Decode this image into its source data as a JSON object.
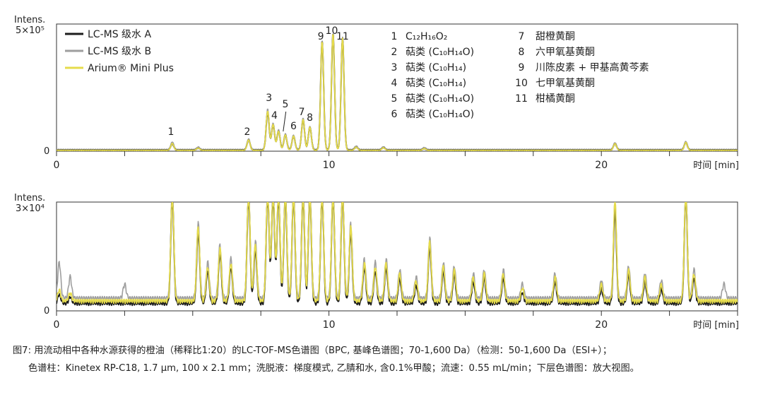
{
  "colors": {
    "series_a": "#1c1c1c",
    "series_b": "#9e9e9e",
    "series_c": "#e6dc4c",
    "axis": "#333333"
  },
  "caption": {
    "line1": "图7: 用流动相中各种水源获得的橙油（稀释比1:20）的LC-TOF-MS色谱图（BPC, 基峰色谱图；70-1,600 Da）（检测：50-1,600 Da（ESI+）；",
    "line2": "色谱柱：Kinetex RP-C18, 1.7 µm, 100 x 2.1 mm；洗脱液：梯度模式, 乙腈和水, 含0.1%甲酸；流速：0.55 mL/min；下层色谱图：放大视图。"
  },
  "chart_data": [
    {
      "type": "line",
      "panel": "top",
      "y_label_line1": "Intens.",
      "y_top_label": "5×10⁵",
      "y_zero_label": "0",
      "xlabel": "时间 [min]",
      "xlim": [
        0,
        25
      ],
      "ylim": [
        0,
        500000
      ],
      "x_tick_labels": [
        "0",
        "10",
        "20"
      ],
      "x_label_ticks": [
        0,
        10,
        20
      ],
      "x_minor_ticks": [
        0,
        2.5,
        5,
        7.5,
        10,
        12.5,
        15,
        17.5,
        20,
        22.5,
        25
      ],
      "legend": {
        "placement": "top-left",
        "entries": [
          "LC-MS 级水 A",
          "LC-MS 级水 B",
          "Arium® Mini Plus"
        ]
      },
      "peak_labels": [
        {
          "label": "1",
          "x": 4.2
        },
        {
          "label": "2",
          "x": 7.0
        },
        {
          "label": "3",
          "x": 7.8
        },
        {
          "label": "4",
          "x": 8.0
        },
        {
          "label": "5",
          "x": 8.4
        },
        {
          "label": "6",
          "x": 8.7
        },
        {
          "label": "7",
          "x": 9.0
        },
        {
          "label": "8",
          "x": 9.3
        },
        {
          "label": "9",
          "x": 9.7
        },
        {
          "label": "10",
          "x": 10.1
        },
        {
          "label": "11",
          "x": 10.5
        }
      ],
      "peak_ids": [
        {
          "num": "1",
          "name": "C₁₂H₁₆O₂"
        },
        {
          "num": "2",
          "name": "萜类 (C₁₀H₁₄O)"
        },
        {
          "num": "3",
          "name": "萜类 (C₁₀H₁₄)"
        },
        {
          "num": "4",
          "name": "萜类 (C₁₀H₁₄)"
        },
        {
          "num": "5",
          "name": "萜类 (C₁₀H₁₄O)"
        },
        {
          "num": "6",
          "name": "萜类 (C₁₀H₁₄O)"
        },
        {
          "num": "7",
          "name": "甜橙黄酮"
        },
        {
          "num": "8",
          "name": "六甲氧基黄酮"
        },
        {
          "num": "9",
          "name": "川陈皮素 + 甲基高黄芩素"
        },
        {
          "num": "10",
          "name": "七甲氧基黄酮"
        },
        {
          "num": "11",
          "name": "柑橘黄酮"
        }
      ],
      "series": [
        {
          "name": "LC-MS 级水 A",
          "baseline": 3000,
          "peaks": [
            [
              4.25,
              25000
            ],
            [
              5.2,
              8000
            ],
            [
              7.05,
              40000
            ],
            [
              7.75,
              150000
            ],
            [
              7.95,
              100000
            ],
            [
              8.15,
              75000
            ],
            [
              8.4,
              60000
            ],
            [
              8.7,
              55000
            ],
            [
              9.05,
              120000
            ],
            [
              9.3,
              90000
            ],
            [
              9.75,
              430000
            ],
            [
              10.15,
              460000
            ],
            [
              10.5,
              440000
            ],
            [
              11.0,
              12000
            ],
            [
              12.0,
              10000
            ],
            [
              13.5,
              6000
            ],
            [
              20.5,
              25000
            ],
            [
              23.1,
              30000
            ]
          ]
        },
        {
          "name": "LC-MS 级水 B",
          "baseline": 5000,
          "peaks": [
            [
              4.25,
              30000
            ],
            [
              5.2,
              10000
            ],
            [
              7.05,
              42000
            ],
            [
              7.75,
              160000
            ],
            [
              7.95,
              105000
            ],
            [
              8.15,
              78000
            ],
            [
              8.4,
              62000
            ],
            [
              8.7,
              57000
            ],
            [
              9.05,
              125000
            ],
            [
              9.3,
              92000
            ],
            [
              9.75,
              432000
            ],
            [
              10.15,
              462000
            ],
            [
              10.5,
              442000
            ],
            [
              11.0,
              14000
            ],
            [
              12.0,
              11000
            ],
            [
              13.5,
              8000
            ],
            [
              20.5,
              27000
            ],
            [
              23.1,
              32000
            ]
          ]
        },
        {
          "name": "Arium® Mini Plus",
          "baseline": 2500,
          "peaks": [
            [
              4.25,
              27000
            ],
            [
              5.2,
              9000
            ],
            [
              7.05,
              41000
            ],
            [
              7.75,
              155000
            ],
            [
              7.95,
              102000
            ],
            [
              8.15,
              76000
            ],
            [
              8.4,
              61000
            ],
            [
              8.7,
              56000
            ],
            [
              9.05,
              122000
            ],
            [
              9.3,
              91000
            ],
            [
              9.75,
              431000
            ],
            [
              10.15,
              461000
            ],
            [
              10.5,
              441000
            ],
            [
              11.0,
              13000
            ],
            [
              12.0,
              10500
            ],
            [
              13.5,
              7000
            ],
            [
              20.5,
              26000
            ],
            [
              23.1,
              31000
            ]
          ]
        }
      ]
    },
    {
      "type": "line",
      "panel": "bottom",
      "y_label_line1": "Intens.",
      "y_top_label": "3×10⁴",
      "y_zero_label": "0",
      "xlabel": "时间 [min]",
      "xlim": [
        0,
        25
      ],
      "ylim": [
        0,
        30000
      ],
      "x_tick_labels": [
        "0",
        "10",
        "20"
      ],
      "x_label_ticks": [
        0,
        10,
        20
      ],
      "x_minor_ticks": [
        0,
        2.5,
        5,
        7.5,
        10,
        12.5,
        15,
        17.5,
        20,
        22.5,
        25
      ],
      "series": [
        {
          "name": "LC-MS 级水 A",
          "baseline": 1500,
          "peaks": [
            [
              0.1,
              2500
            ],
            [
              0.5,
              1800
            ],
            [
              4.25,
              30000
            ],
            [
              5.2,
              20000
            ],
            [
              5.55,
              9000
            ],
            [
              6.0,
              14000
            ],
            [
              6.4,
              10000
            ],
            [
              7.05,
              30000
            ],
            [
              7.3,
              15000
            ],
            [
              7.75,
              30000
            ],
            [
              7.95,
              30000
            ],
            [
              8.15,
              30000
            ],
            [
              8.4,
              30000
            ],
            [
              8.7,
              30000
            ],
            [
              9.05,
              30000
            ],
            [
              9.3,
              30000
            ],
            [
              9.75,
              30000
            ],
            [
              10.15,
              30000
            ],
            [
              10.5,
              30000
            ],
            [
              10.8,
              20000
            ],
            [
              11.3,
              10000
            ],
            [
              11.7,
              9000
            ],
            [
              12.1,
              10000
            ],
            [
              12.6,
              7000
            ],
            [
              13.2,
              5000
            ],
            [
              13.7,
              16000
            ],
            [
              14.2,
              9000
            ],
            [
              14.6,
              8000
            ],
            [
              15.3,
              6000
            ],
            [
              15.7,
              7000
            ],
            [
              16.4,
              7000
            ],
            [
              17.1,
              3000
            ],
            [
              18.3,
              6000
            ],
            [
              20.0,
              4000
            ],
            [
              20.5,
              26000
            ],
            [
              21.0,
              8000
            ],
            [
              21.6,
              6000
            ],
            [
              22.2,
              4000
            ],
            [
              23.1,
              30000
            ],
            [
              23.4,
              7000
            ]
          ]
        },
        {
          "name": "LC-MS 级水 B",
          "baseline": 2500,
          "peaks": [
            [
              0.1,
              10000
            ],
            [
              0.5,
              6000
            ],
            [
              2.5,
              4000
            ],
            [
              4.25,
              30000
            ],
            [
              5.2,
              21000
            ],
            [
              5.55,
              10000
            ],
            [
              6.0,
              15000
            ],
            [
              6.4,
              11000
            ],
            [
              7.05,
              30000
            ],
            [
              7.3,
              16000
            ],
            [
              7.75,
              30000
            ],
            [
              7.95,
              30000
            ],
            [
              8.15,
              30000
            ],
            [
              8.4,
              30000
            ],
            [
              8.7,
              30000
            ],
            [
              9.05,
              30000
            ],
            [
              9.3,
              30000
            ],
            [
              9.75,
              30000
            ],
            [
              10.15,
              30000
            ],
            [
              10.5,
              30000
            ],
            [
              10.8,
              21000
            ],
            [
              11.3,
              11000
            ],
            [
              11.7,
              10000
            ],
            [
              12.1,
              11000
            ],
            [
              12.6,
              8000
            ],
            [
              13.2,
              6000
            ],
            [
              13.7,
              17000
            ],
            [
              14.2,
              10000
            ],
            [
              14.6,
              9000
            ],
            [
              15.3,
              7000
            ],
            [
              15.7,
              8000
            ],
            [
              16.4,
              8000
            ],
            [
              17.1,
              4000
            ],
            [
              18.3,
              7000
            ],
            [
              20.0,
              5000
            ],
            [
              20.5,
              27000
            ],
            [
              21.0,
              9000
            ],
            [
              21.6,
              7000
            ],
            [
              22.2,
              5000
            ],
            [
              23.1,
              30000
            ],
            [
              23.4,
              8000
            ],
            [
              24.5,
              4000
            ]
          ]
        },
        {
          "name": "Arium® Mini Plus",
          "baseline": 2000,
          "peaks": [
            [
              0.1,
              3000
            ],
            [
              0.5,
              2200
            ],
            [
              4.25,
              30000
            ],
            [
              5.2,
              20500
            ],
            [
              5.55,
              9500
            ],
            [
              6.0,
              14500
            ],
            [
              6.4,
              10500
            ],
            [
              7.05,
              30000
            ],
            [
              7.3,
              15500
            ],
            [
              7.75,
              30000
            ],
            [
              7.95,
              30000
            ],
            [
              8.15,
              30000
            ],
            [
              8.4,
              30000
            ],
            [
              8.7,
              30000
            ],
            [
              9.05,
              30000
            ],
            [
              9.3,
              30000
            ],
            [
              9.75,
              30000
            ],
            [
              10.15,
              30000
            ],
            [
              10.5,
              30000
            ],
            [
              10.8,
              20500
            ],
            [
              11.3,
              10500
            ],
            [
              11.7,
              9500
            ],
            [
              12.1,
              10500
            ],
            [
              12.6,
              7500
            ],
            [
              13.2,
              5500
            ],
            [
              13.7,
              16500
            ],
            [
              14.2,
              9500
            ],
            [
              14.6,
              8500
            ],
            [
              15.3,
              6500
            ],
            [
              15.7,
              7500
            ],
            [
              16.4,
              7500
            ],
            [
              17.1,
              3500
            ],
            [
              18.3,
              6500
            ],
            [
              20.0,
              4500
            ],
            [
              20.5,
              28000
            ],
            [
              21.0,
              8500
            ],
            [
              21.6,
              6500
            ],
            [
              22.2,
              4500
            ],
            [
              23.1,
              30000
            ],
            [
              23.4,
              7500
            ]
          ]
        }
      ]
    }
  ]
}
